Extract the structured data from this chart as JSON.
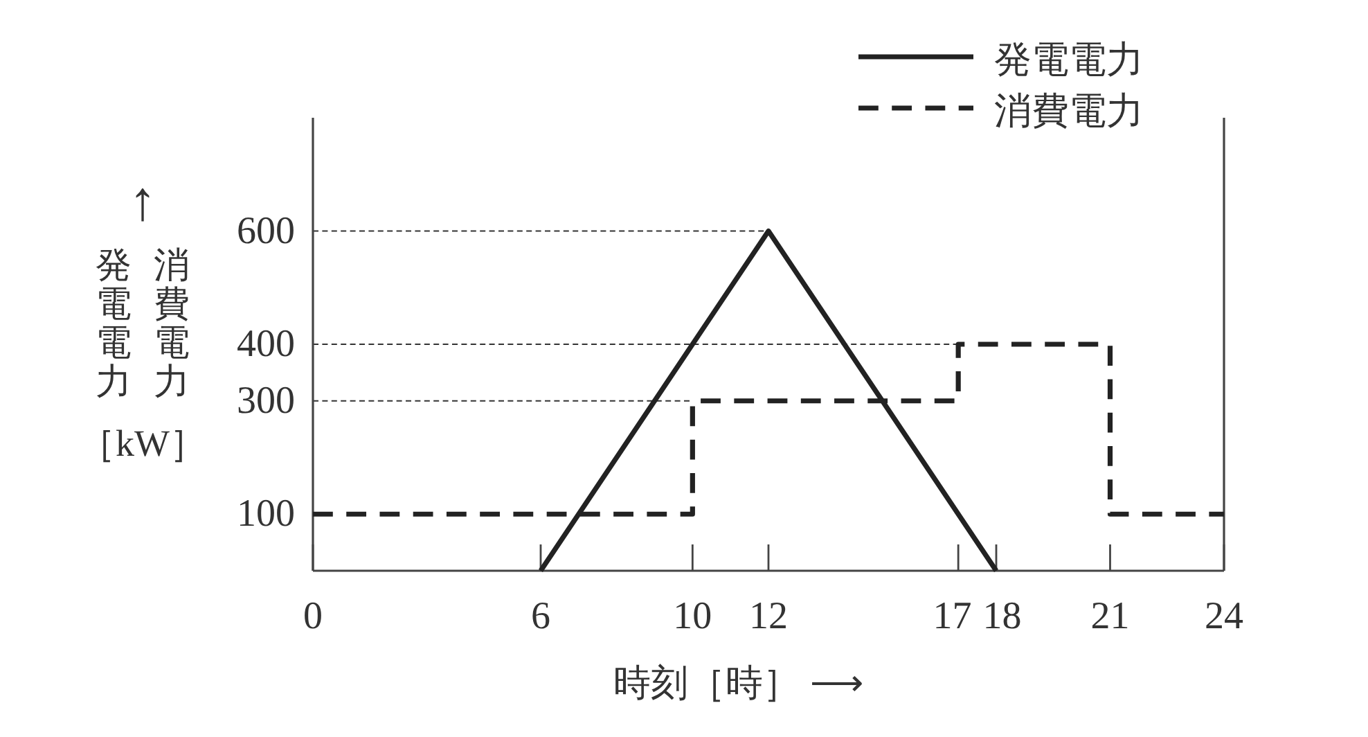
{
  "chart_data": {
    "type": "line",
    "xlabel": "時刻［時］ ⟶",
    "ylabel": "↑\n発電電力消費電力［kW］",
    "xlim": [
      0,
      24
    ],
    "xticks": [
      0,
      6,
      10,
      12,
      17,
      18,
      21,
      24
    ],
    "ylim": [
      0,
      800
    ],
    "yticks": [
      100,
      300,
      400,
      600
    ],
    "legend": "top right",
    "ref_lines": [
      {
        "axis": "y",
        "value": 600,
        "color": "#333333",
        "line_style": "dashed"
      },
      {
        "axis": "y",
        "value": 400,
        "color": "#333333",
        "line_style": "dashed"
      },
      {
        "axis": "y",
        "value": 300,
        "color": "#333333",
        "line_style": "dashed"
      }
    ],
    "series": [
      {
        "name": "発電電力",
        "type": "line",
        "color": "#222222",
        "line_style": "solid",
        "x": [
          6,
          12,
          18
        ],
        "values": [
          0,
          600,
          0
        ]
      },
      {
        "name": "消費電力",
        "type": "step",
        "color": "#222222",
        "line_style": "dashed",
        "x": [
          0,
          10,
          17,
          21,
          24
        ],
        "values": [
          100,
          300,
          400,
          100,
          100
        ]
      }
    ]
  }
}
